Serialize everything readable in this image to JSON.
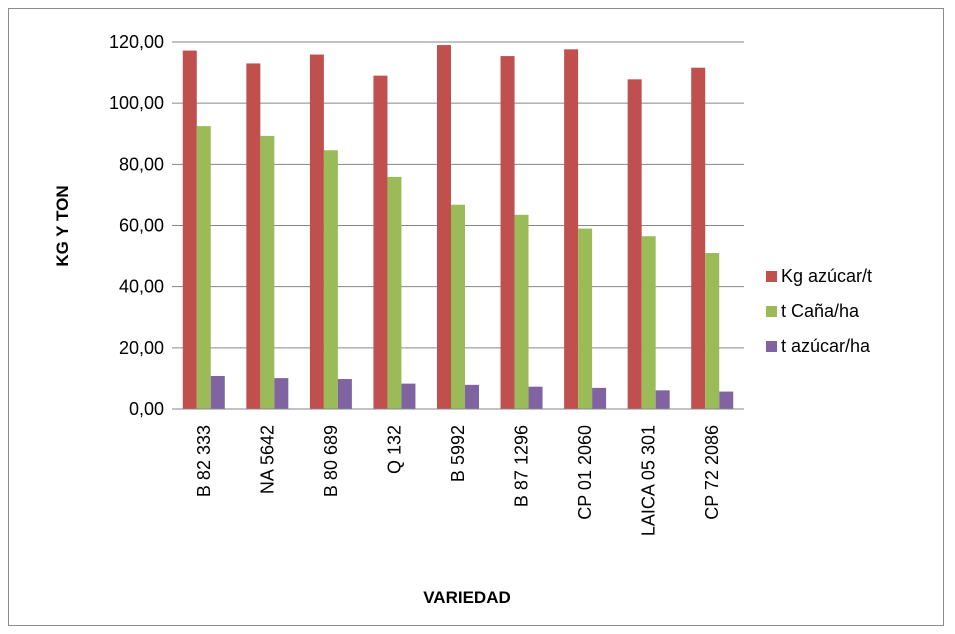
{
  "chart_data": {
    "type": "bar",
    "title": "",
    "xlabel": "VARIEDAD",
    "ylabel": "KG Y TON",
    "ylim": [
      0,
      120
    ],
    "yticks": [
      "0,00",
      "20,00",
      "40,00",
      "60,00",
      "80,00",
      "100,00",
      "120,00"
    ],
    "categories": [
      "B 82 333",
      "NA 5642",
      "B 80 689",
      "Q 132",
      "B 5992",
      "B 87 1296",
      "CP 01 2060",
      "LAICA 05 301",
      "CP 72 2086"
    ],
    "series": [
      {
        "name": "Kg azúcar/t",
        "color": "#c0504d",
        "values": [
          117.2,
          113.0,
          115.9,
          109.0,
          119.0,
          115.4,
          117.6,
          107.8,
          111.6
        ]
      },
      {
        "name": "t Caña/ha",
        "color": "#9bbb59",
        "values": [
          92.5,
          89.3,
          84.6,
          75.9,
          66.8,
          63.5,
          59.0,
          56.5,
          51.0
        ]
      },
      {
        "name": "t azúcar/ha",
        "color": "#8064a2",
        "values": [
          10.8,
          10.1,
          9.8,
          8.3,
          7.9,
          7.3,
          6.9,
          6.1,
          5.7
        ]
      }
    ],
    "grid": true,
    "legend": "right"
  }
}
